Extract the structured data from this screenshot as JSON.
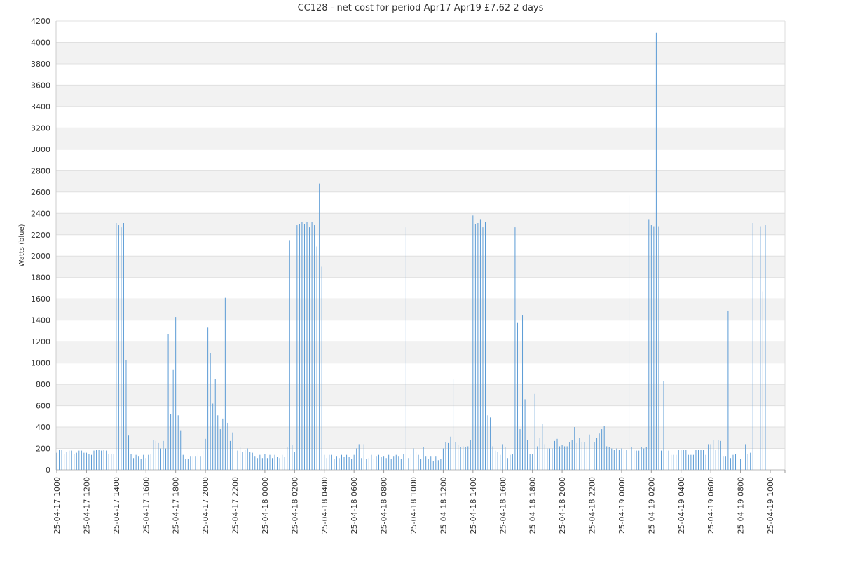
{
  "chart_data": {
    "type": "bar",
    "title": "CC128 - net cost for period Apr17 Apr19 £7.62 2 days",
    "ylabel": "Watts (blue)",
    "color": "#5b9bd5",
    "grid": true,
    "ylim": [
      0,
      4200
    ],
    "yticks": [
      0,
      200,
      400,
      600,
      800,
      1000,
      1200,
      1400,
      1600,
      1800,
      2000,
      2200,
      2400,
      2600,
      2800,
      3000,
      3200,
      3400,
      3600,
      3800,
      4000,
      4200
    ],
    "categories": [
      "25-04-17 1000",
      null,
      null,
      null,
      null,
      null,
      null,
      null,
      null,
      null,
      null,
      null,
      "25-04-17 1200",
      null,
      null,
      null,
      null,
      null,
      null,
      null,
      null,
      null,
      null,
      null,
      "25-04-17 1400",
      null,
      null,
      null,
      null,
      null,
      null,
      null,
      null,
      null,
      null,
      null,
      "25-04-17 1600",
      null,
      null,
      null,
      null,
      null,
      null,
      null,
      null,
      null,
      null,
      null,
      "25-04-17 1800",
      null,
      null,
      null,
      null,
      null,
      null,
      null,
      null,
      null,
      null,
      null,
      "25-04-17 2000",
      null,
      null,
      null,
      null,
      null,
      null,
      null,
      null,
      null,
      null,
      null,
      "25-04-17 2200",
      null,
      null,
      null,
      null,
      null,
      null,
      null,
      null,
      null,
      null,
      null,
      "25-04-18 0000",
      null,
      null,
      null,
      null,
      null,
      null,
      null,
      null,
      null,
      null,
      null,
      "25-04-18 0200",
      null,
      null,
      null,
      null,
      null,
      null,
      null,
      null,
      null,
      null,
      null,
      "25-04-18 0400",
      null,
      null,
      null,
      null,
      null,
      null,
      null,
      null,
      null,
      null,
      null,
      "25-04-18 0600",
      null,
      null,
      null,
      null,
      null,
      null,
      null,
      null,
      null,
      null,
      null,
      "25-04-18 0800",
      null,
      null,
      null,
      null,
      null,
      null,
      null,
      null,
      null,
      null,
      null,
      "25-04-18 1000",
      null,
      null,
      null,
      null,
      null,
      null,
      null,
      null,
      null,
      null,
      null,
      "25-04-18 1200",
      null,
      null,
      null,
      null,
      null,
      null,
      null,
      null,
      null,
      null,
      null,
      "25-04-18 1400",
      null,
      null,
      null,
      null,
      null,
      null,
      null,
      null,
      null,
      null,
      null,
      "25-04-18 1600",
      null,
      null,
      null,
      null,
      null,
      null,
      null,
      null,
      null,
      null,
      null,
      "25-04-18 1800",
      null,
      null,
      null,
      null,
      null,
      null,
      null,
      null,
      null,
      null,
      null,
      "25-04-18 2000",
      null,
      null,
      null,
      null,
      null,
      null,
      null,
      null,
      null,
      null,
      null,
      "25-04-18 2200",
      null,
      null,
      null,
      null,
      null,
      null,
      null,
      null,
      null,
      null,
      null,
      "25-04-19 0000",
      null,
      null,
      null,
      null,
      null,
      null,
      null,
      null,
      null,
      null,
      null,
      "25-04-19 0200",
      null,
      null,
      null,
      null,
      null,
      null,
      null,
      null,
      null,
      null,
      null,
      "25-04-19 0400",
      null,
      null,
      null,
      null,
      null,
      null,
      null,
      null,
      null,
      null,
      null,
      "25-04-19 0600",
      null,
      null,
      null,
      null,
      null,
      null,
      null,
      null,
      null,
      null,
      null,
      "25-04-19 0800",
      null,
      null,
      null,
      null,
      null,
      null,
      null,
      null,
      null,
      null,
      null,
      "25-04-19 1000"
    ],
    "values": [
      160,
      190,
      190,
      150,
      170,
      180,
      180,
      150,
      160,
      180,
      180,
      160,
      160,
      150,
      140,
      180,
      190,
      190,
      180,
      190,
      180,
      150,
      150,
      150,
      2310,
      2290,
      2270,
      2310,
      1030,
      320,
      150,
      110,
      140,
      130,
      100,
      140,
      110,
      140,
      150,
      280,
      270,
      250,
      200,
      270,
      200,
      1270,
      520,
      940,
      1430,
      510,
      370,
      140,
      100,
      100,
      130,
      130,
      130,
      160,
      130,
      180,
      290,
      1330,
      1090,
      620,
      850,
      510,
      380,
      480,
      1610,
      440,
      270,
      350,
      200,
      180,
      210,
      170,
      190,
      200,
      170,
      160,
      130,
      110,
      140,
      110,
      150,
      110,
      140,
      110,
      140,
      120,
      110,
      140,
      120,
      210,
      2150,
      230,
      170,
      2290,
      2300,
      2320,
      2300,
      2320,
      2270,
      2320,
      2290,
      2090,
      2680,
      1900,
      140,
      110,
      140,
      140,
      100,
      130,
      110,
      140,
      120,
      140,
      120,
      100,
      140,
      200,
      240,
      110,
      240,
      100,
      110,
      140,
      100,
      130,
      140,
      120,
      130,
      110,
      140,
      100,
      130,
      140,
      130,
      100,
      150,
      2270,
      110,
      150,
      200,
      170,
      140,
      100,
      210,
      130,
      100,
      130,
      80,
      130,
      90,
      100,
      200,
      260,
      250,
      310,
      850,
      260,
      230,
      210,
      220,
      210,
      220,
      280,
      2380,
      2300,
      2310,
      2340,
      2270,
      2320,
      510,
      490,
      220,
      180,
      170,
      140,
      240,
      210,
      110,
      140,
      150,
      2270,
      1380,
      380,
      1450,
      660,
      280,
      150,
      150,
      710,
      220,
      300,
      430,
      240,
      200,
      200,
      200,
      270,
      290,
      220,
      230,
      220,
      220,
      260,
      280,
      400,
      250,
      300,
      260,
      260,
      220,
      330,
      380,
      260,
      300,
      340,
      380,
      410,
      220,
      210,
      200,
      190,
      200,
      190,
      200,
      190,
      190,
      2570,
      210,
      190,
      180,
      180,
      210,
      200,
      210,
      2340,
      2290,
      2280,
      4090,
      2280,
      180,
      830,
      190,
      180,
      140,
      140,
      140,
      190,
      190,
      190,
      190,
      140,
      140,
      140,
      190,
      190,
      190,
      190,
      140,
      240,
      240,
      280,
      190,
      280,
      270,
      130,
      130,
      1490,
      110,
      140,
      150,
      null,
      100,
      null,
      240,
      150,
      160,
      2310,
      null,
      null,
      2280,
      1670,
      2290,
      null,
      null
    ]
  }
}
